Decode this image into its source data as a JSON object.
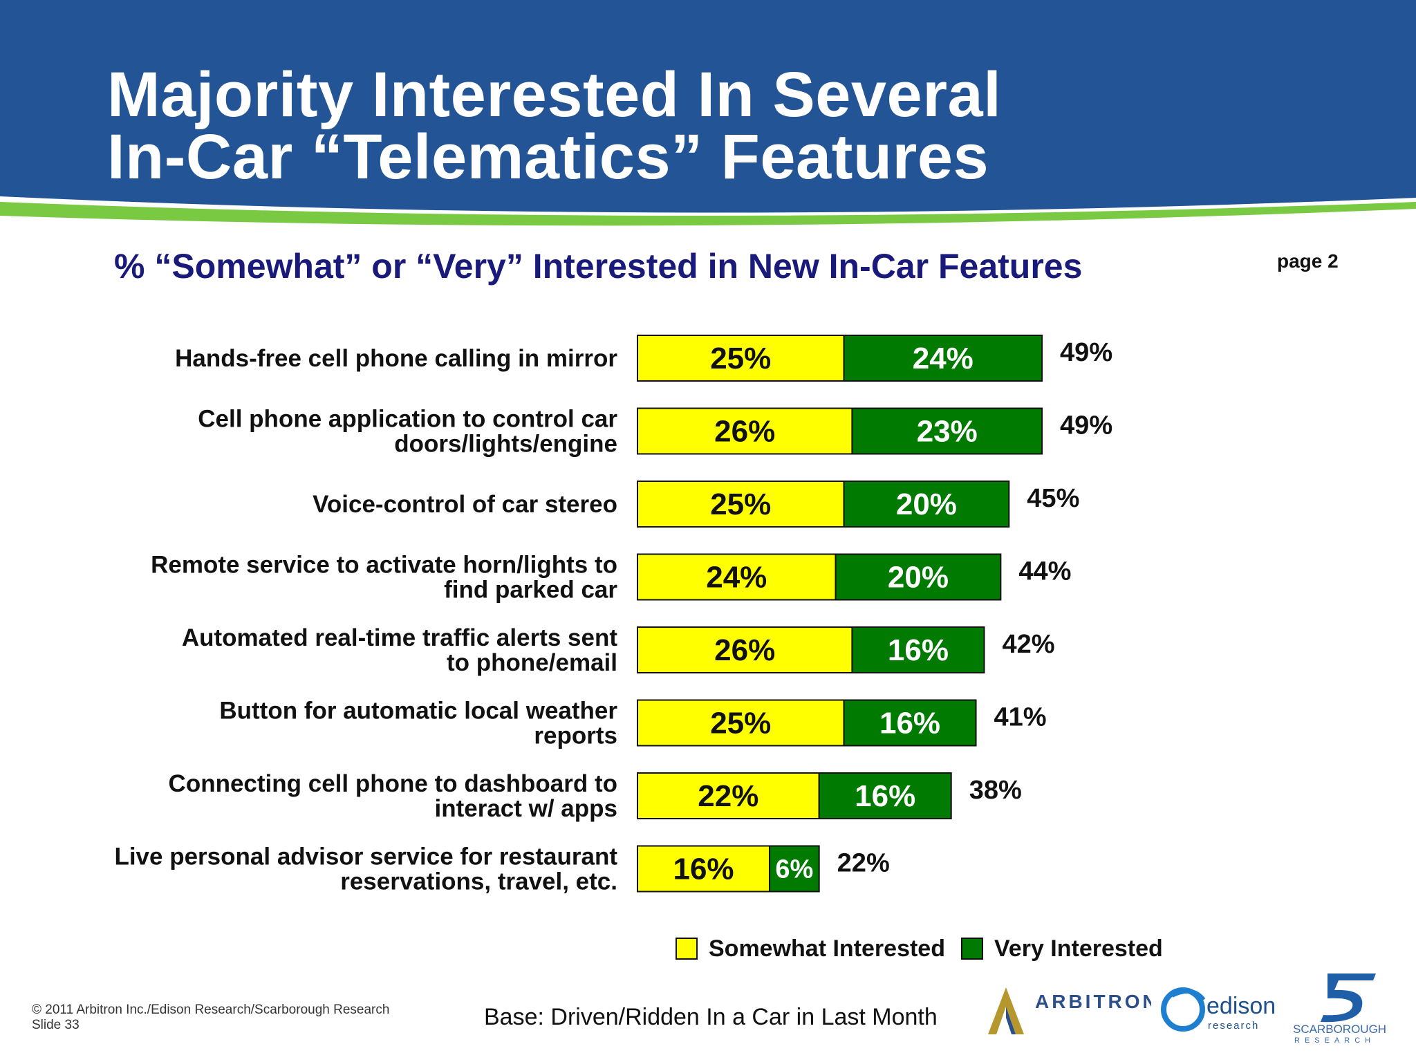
{
  "slide": {
    "title_line1": "Majority Interested In Several",
    "title_line2": "In-Car “Telematics” Features",
    "subtitle": "% “Somewhat” or “Very” Interested in New In-Car Features",
    "page_label": "page 2",
    "base_note": "Base: Driven/Ridden In a Car in Last Month",
    "copyright": "© 2011 Arbitron Inc./Edison Research/Scarborough Research",
    "slide_number": "Slide 33",
    "colors": {
      "header_blue": "#235596",
      "accent_green": "#7ac943",
      "somewhat": "#ffff00",
      "very": "#007a00",
      "subtitle": "#1a1a7a"
    },
    "logos": [
      "arbitron-logo",
      "edison-research-logo",
      "scarborough-research-logo"
    ]
  },
  "chart_data": {
    "type": "bar",
    "orientation": "horizontal",
    "stacked": true,
    "title": "% “Somewhat” or “Very” Interested in New In-Car Features",
    "categories": [
      "Hands-free cell phone calling in mirror",
      "Cell phone application to control car doors/lights/engine",
      "Voice-control of car stereo",
      "Remote service to activate horn/lights to find parked car",
      "Automated real-time traffic alerts sent to phone/email",
      "Button for automatic local weather reports",
      "Connecting cell phone to dashboard to interact w/ apps",
      "Live personal advisor service for restaurant reservations, travel, etc."
    ],
    "category_lines": [
      [
        "Hands-free cell phone calling in mirror"
      ],
      [
        "Cell phone application to control car",
        "doors/lights/engine"
      ],
      [
        "Voice-control of car stereo"
      ],
      [
        "Remote service to activate horn/lights to",
        "find parked car"
      ],
      [
        "Automated real-time traffic alerts sent",
        "to phone/email"
      ],
      [
        "Button for automatic local weather",
        "reports"
      ],
      [
        "Connecting cell phone to dashboard to",
        "interact w/ apps"
      ],
      [
        "Live personal advisor service for restaurant",
        "reservations, travel, etc."
      ]
    ],
    "series": [
      {
        "name": "Somewhat Interested",
        "color": "#ffff00",
        "values": [
          25,
          26,
          25,
          24,
          26,
          25,
          22,
          16
        ]
      },
      {
        "name": "Very Interested",
        "color": "#007a00",
        "values": [
          24,
          23,
          20,
          20,
          16,
          16,
          16,
          6
        ]
      }
    ],
    "totals": [
      49,
      49,
      45,
      44,
      42,
      41,
      38,
      22
    ],
    "value_suffix": "%",
    "legend_position": "bottom",
    "grid": false
  }
}
